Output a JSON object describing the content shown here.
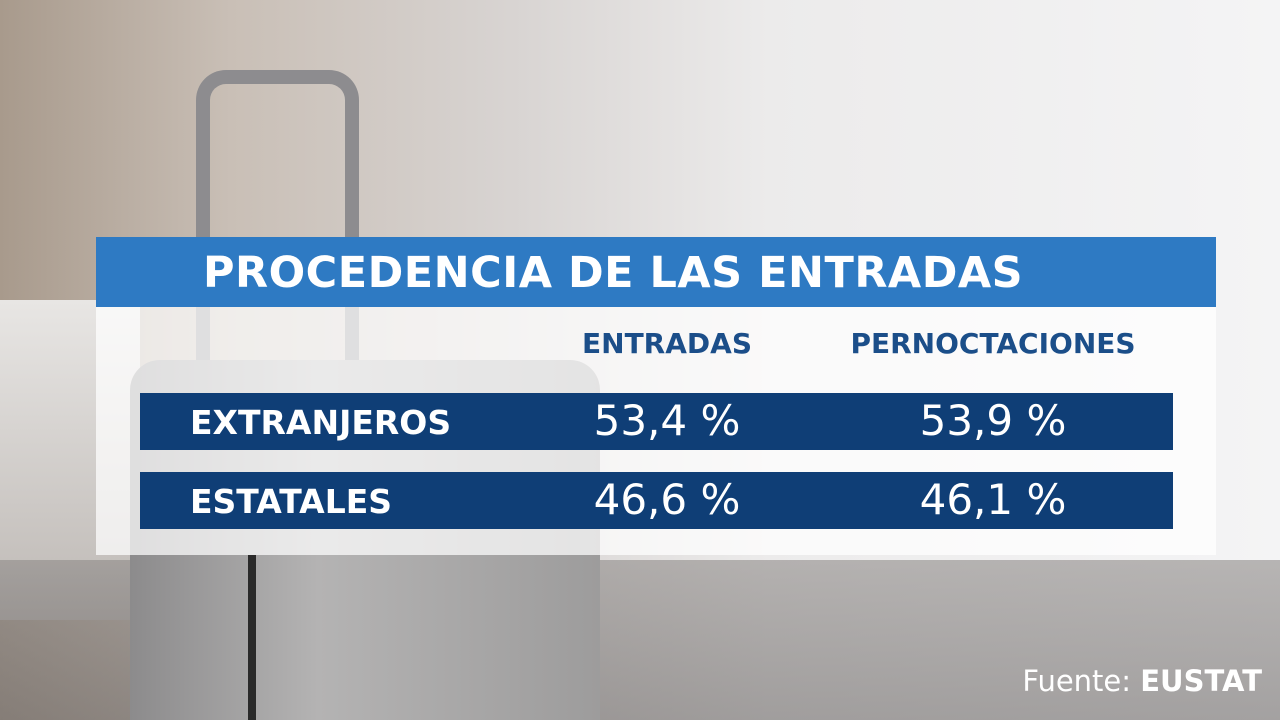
{
  "table": {
    "title": "PROCEDENCIA DE LAS ENTRADAS",
    "columns": [
      "ENTRADAS",
      "PERNOCTACIONES"
    ],
    "rows": [
      [
        "EXTRANJEROS",
        "53,4 %",
        "53,9 %"
      ],
      [
        "ESTATALES",
        "46,6 %",
        "46,1 %"
      ]
    ]
  },
  "footer": {
    "source_label": "Fuente:",
    "source_name": "EUSTAT"
  }
}
